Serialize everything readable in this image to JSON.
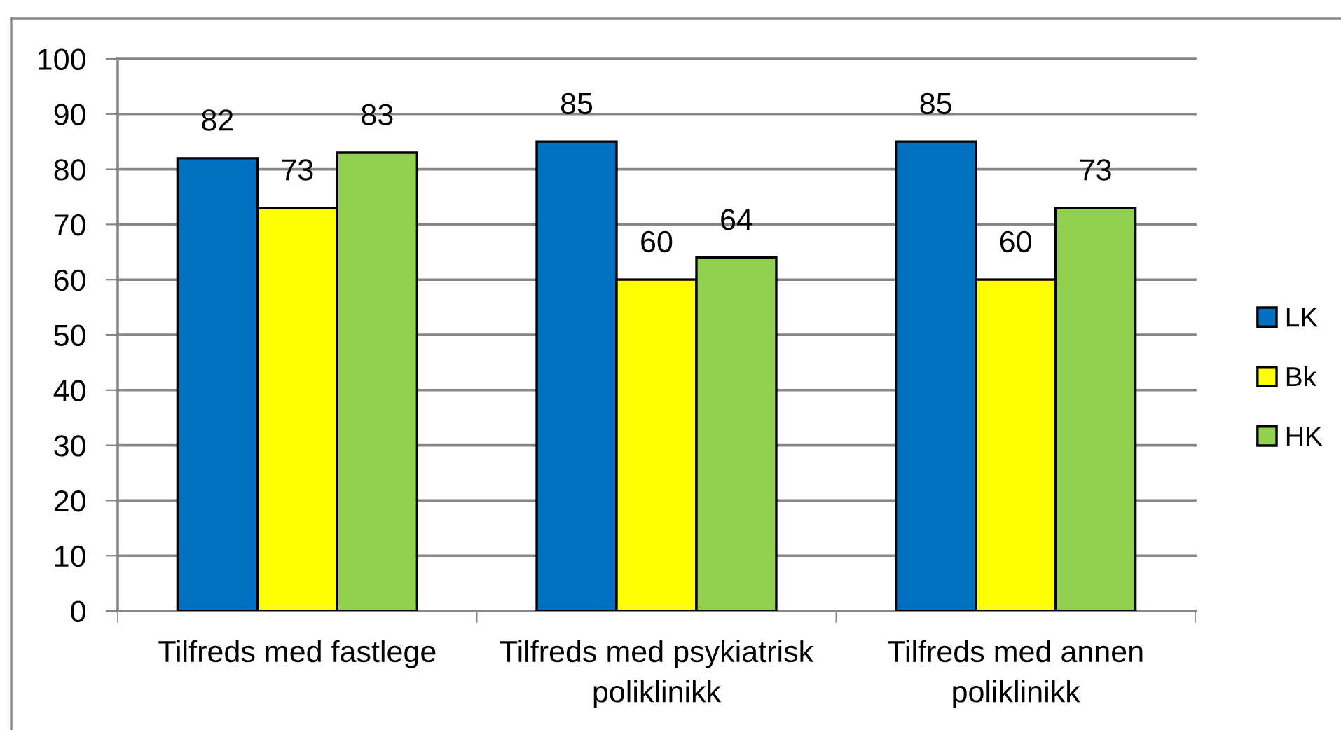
{
  "chart_data": {
    "type": "bar",
    "categories": [
      "Tilfreds med fastlege",
      "Tilfreds med psykiatrisk\npoliklinikk",
      "Tilfreds med annen\npoliklinikk"
    ],
    "series": [
      {
        "name": "LK",
        "color": "#0070c0",
        "values": [
          82,
          85,
          85
        ]
      },
      {
        "name": "Bk",
        "color": "#ffff00",
        "values": [
          73,
          60,
          60
        ]
      },
      {
        "name": "HK",
        "color": "#92d050",
        "values": [
          83,
          64,
          73
        ]
      }
    ],
    "ylim": [
      0,
      100
    ],
    "yticks": [
      0,
      10,
      20,
      30,
      40,
      50,
      60,
      70,
      80,
      90,
      100
    ],
    "grid": "y",
    "legend": "right",
    "data_labels": true
  }
}
